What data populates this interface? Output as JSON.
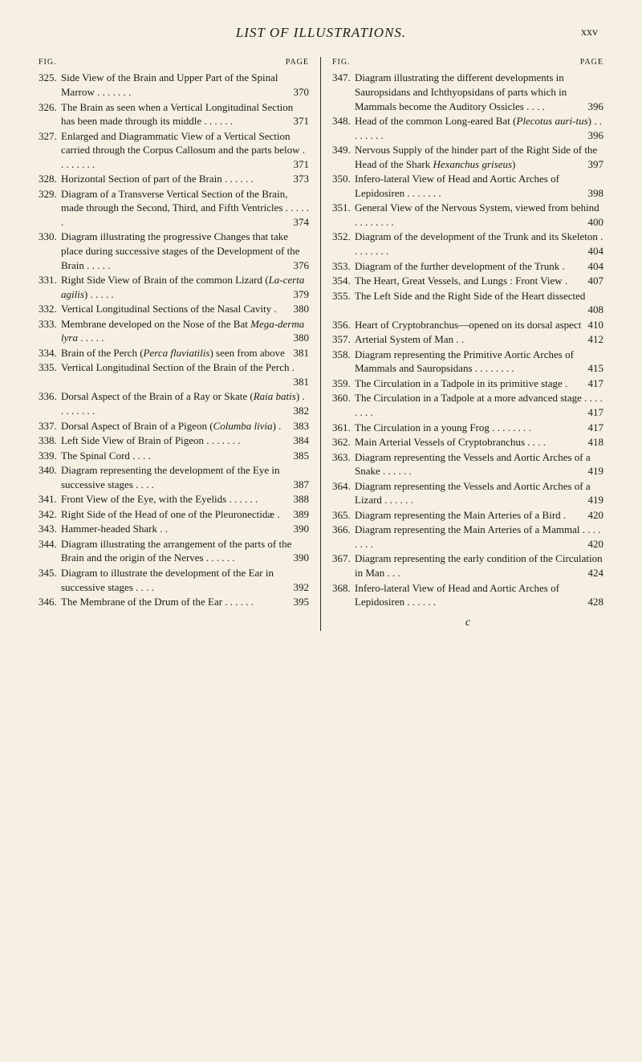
{
  "header": {
    "title": "LIST OF ILLUSTRATIONS.",
    "pageLabel": "xxv"
  },
  "colHeaders": {
    "fig": "FIG.",
    "page": "PAGE"
  },
  "leftEntries": [
    {
      "n": "325.",
      "d": "Side View of the Brain and Upper Part of the Spinal Marrow . . . . . . .",
      "p": "370"
    },
    {
      "n": "326.",
      "d": "The Brain as seen when a Vertical Longitudinal Section has been made through its middle . . . . . .",
      "p": "371"
    },
    {
      "n": "327.",
      "d": "Enlarged and Diagrammatic View of a Vertical Section carried through the Corpus Callosum and the parts below . . . . . . . .",
      "p": "371"
    },
    {
      "n": "328.",
      "d": "Horizontal Section of part of the Brain . . . . . .",
      "p": "373"
    },
    {
      "n": "329.",
      "d": "Diagram of a Transverse Vertical Section of the Brain, made through the Second, Third, and Fifth Ventricles . . . . . .",
      "p": "374"
    },
    {
      "n": "330.",
      "d": "Diagram illustrating the progressive Changes that take place during successive stages of the Development of the Brain . . . . .",
      "p": "376"
    },
    {
      "n": "331.",
      "d": "Right Side View of Brain of the common Lizard (<i>La-certa agilis</i>) . . . . .",
      "p": "379"
    },
    {
      "n": "332.",
      "d": "Vertical Longitudinal Sections of the Nasal Cavity .",
      "p": "380"
    },
    {
      "n": "333.",
      "d": "Membrane developed on the Nose of the Bat <i>Mega-derma lyra</i> . . . . .",
      "p": "380"
    },
    {
      "n": "334.",
      "d": "Brain of the Perch (<i>Perca fluviatilis</i>) seen from above",
      "p": "381"
    },
    {
      "n": "335.",
      "d": "Vertical Longitudinal Section of the Brain of the Perch .",
      "p": "381"
    },
    {
      "n": "336.",
      "d": "Dorsal Aspect of the Brain of a Ray or Skate (<i>Raia batis</i>) . . . . . . . .",
      "p": "382"
    },
    {
      "n": "337.",
      "d": "Dorsal Aspect of Brain of a Pigeon (<i>Columba livia</i>) .",
      "p": "383"
    },
    {
      "n": "338.",
      "d": "Left Side View of Brain of Pigeon . . . . . . .",
      "p": "384"
    },
    {
      "n": "339.",
      "d": "The Spinal Cord . . . .",
      "p": "385"
    },
    {
      "n": "340.",
      "d": "Diagram representing the development of the Eye in successive stages . . . .",
      "p": "387"
    },
    {
      "n": "341.",
      "d": "Front View of the Eye, with the Eyelids . . . . . .",
      "p": "388"
    },
    {
      "n": "342.",
      "d": "Right Side of the Head of one of the Pleuronectidæ .",
      "p": "389"
    },
    {
      "n": "343.",
      "d": "Hammer-headed Shark . .",
      "p": "390"
    },
    {
      "n": "344.",
      "d": "Diagram illustrating the arrangement of the parts of the Brain and the origin of the Nerves . . . . . .",
      "p": "390"
    },
    {
      "n": "345.",
      "d": "Diagram to illustrate the development of the Ear in successive stages . . . .",
      "p": "392"
    },
    {
      "n": "346.",
      "d": "The Membrane of the Drum of the Ear . . . . . .",
      "p": "395"
    }
  ],
  "rightEntries": [
    {
      "n": "347.",
      "d": "Diagram illustrating the different developments in Sauropsidans and Ichthyopsidans of parts which in Mammals become the Auditory Ossicles . . . .",
      "p": "396"
    },
    {
      "n": "348.",
      "d": "Head of the common Long-eared Bat (<i>Plecotus auri-tus</i>) . . . . . . . .",
      "p": "396"
    },
    {
      "n": "349.",
      "d": "Nervous Supply of the hinder part of the Right Side of the Head of the Shark <i>Hexanchus griseus</i>)",
      "p": "397"
    },
    {
      "n": "350.",
      "d": "Infero-lateral View of Head and Aortic Arches of Lepidosiren . . . . . . .",
      "p": "398"
    },
    {
      "n": "351.",
      "d": "General View of the Nervous System, viewed from behind . . . . . . . .",
      "p": "400"
    },
    {
      "n": "352.",
      "d": "Diagram of the development of the Trunk and its Skeleton . . . . . . . .",
      "p": "404"
    },
    {
      "n": "353.",
      "d": "Diagram of the further development of the Trunk .",
      "p": "404"
    },
    {
      "n": "354.",
      "d": "The Heart, Great Vessels, and Lungs : Front View .",
      "p": "407"
    },
    {
      "n": "355.",
      "d": "The Left Side and the Right Side of the Heart dissected",
      "p": "408"
    },
    {
      "n": "356.",
      "d": "Heart of Cryptobranchus—opened on its dorsal aspect",
      "p": "410"
    },
    {
      "n": "357.",
      "d": "Arterial System of Man . .",
      "p": "412"
    },
    {
      "n": "358.",
      "d": "Diagram representing the Primitive Aortic Arches of Mammals and Sauropsidans . . . . . . . .",
      "p": "415"
    },
    {
      "n": "359.",
      "d": "The Circulation in a Tadpole in its primitive stage .",
      "p": "417"
    },
    {
      "n": "360.",
      "d": "The Circulation in a Tadpole at a more advanced stage . . . . . . . .",
      "p": "417"
    },
    {
      "n": "361.",
      "d": "The Circulation in a young Frog . . . . . . . .",
      "p": "417"
    },
    {
      "n": "362.",
      "d": "Main Arterial Vessels of Cryptobranchus . . . .",
      "p": "418"
    },
    {
      "n": "363.",
      "d": "Diagram representing the Vessels and Aortic Arches of a Snake . . . . . .",
      "p": "419"
    },
    {
      "n": "364.",
      "d": "Diagram representing the Vessels and Aortic Arches of a Lizard . . . . . .",
      "p": "419"
    },
    {
      "n": "365.",
      "d": "Diagram representing the Main Arteries of a Bird .",
      "p": "420"
    },
    {
      "n": "366.",
      "d": "Diagram representing the Main Arteries of a Mammal . . . . . . . .",
      "p": "420"
    },
    {
      "n": "367.",
      "d": "Diagram representing the early condition of the Circulation in Man . . .",
      "p": "424"
    },
    {
      "n": "368.",
      "d": "Infero-lateral View of Head and Aortic Arches of Lepidosiren . . . . . .",
      "p": "428"
    }
  ],
  "footLetter": "c"
}
